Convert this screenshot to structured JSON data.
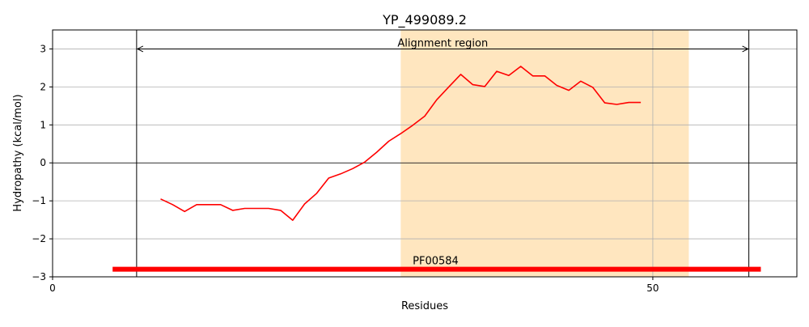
{
  "chart_data": {
    "type": "line",
    "title": "YP_499089.2",
    "xlabel": "Residues",
    "ylabel": "Hydropathy (kcal/mol)",
    "xlim": [
      0,
      62
    ],
    "ylim": [
      -3,
      3.5
    ],
    "x_ticks": [
      0,
      50
    ],
    "y_ticks": [
      -3,
      -2,
      -1,
      0,
      1,
      2,
      3
    ],
    "y_tick_labels": [
      "−3",
      "−2",
      "−1",
      "0",
      "1",
      "2",
      "3"
    ],
    "grid": true,
    "series": [
      {
        "color": "#ff0000",
        "x": [
          9,
          10,
          11,
          12,
          13,
          14,
          15,
          16,
          17,
          18,
          19,
          20,
          21,
          22,
          23,
          24,
          25,
          26,
          27,
          28,
          29,
          30,
          31,
          32,
          33,
          34,
          35,
          36,
          37,
          38,
          39,
          40,
          41,
          42,
          43,
          44,
          45,
          46,
          47,
          48,
          49
        ],
        "y": [
          -0.95,
          -1.1,
          -1.28,
          -1.1,
          -1.1,
          -1.1,
          -1.25,
          -1.2,
          -1.2,
          -1.2,
          -1.25,
          -1.51,
          -1.08,
          -0.8,
          -0.4,
          -0.29,
          -0.15,
          0.02,
          0.28,
          0.57,
          0.77,
          0.99,
          1.23,
          1.66,
          2.0,
          2.33,
          2.06,
          2.01,
          2.41,
          2.3,
          2.54,
          2.29,
          2.29,
          2.04,
          1.91,
          2.15,
          1.99,
          1.58,
          1.54,
          1.59,
          1.59
        ]
      }
    ],
    "alignment_region": {
      "label": "Alignment region",
      "start": 7,
      "end": 58,
      "color": "#000000"
    },
    "highlight_region": {
      "start": 29,
      "end": 53,
      "color": "#ffe6bf"
    },
    "vertical_lines": [
      7,
      58
    ],
    "reference_lines": {
      "y": 0,
      "x": 50
    },
    "domain_bar": {
      "label": "PF00584",
      "start": 5,
      "end": 59,
      "y": -2.8,
      "color": "#ff0000"
    }
  }
}
